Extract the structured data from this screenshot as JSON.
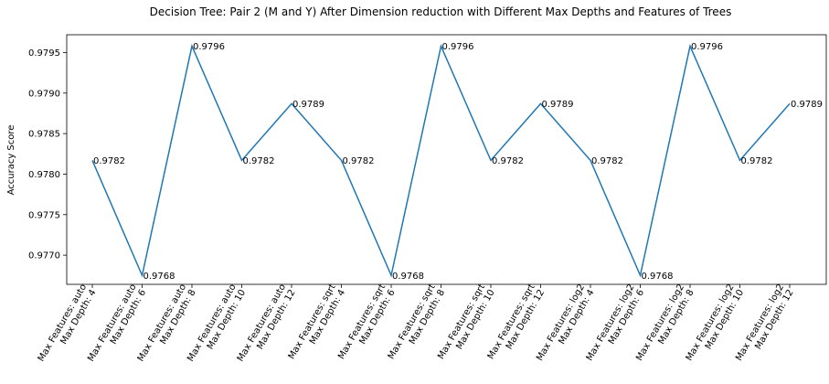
{
  "chart_data": {
    "type": "line",
    "title": "Decision Tree: Pair 2 (M and Y) After Dimension reduction with Different Max Depths and Features of Trees",
    "xlabel": "",
    "ylabel": "Accuracy Score",
    "categories": [
      [
        "Max Features: auto",
        "Max Depth: 4"
      ],
      [
        "Max Features: auto",
        "Max Depth: 6"
      ],
      [
        "Max Features: auto",
        "Max Depth: 8"
      ],
      [
        "Max Features: auto",
        "Max Depth: 10"
      ],
      [
        "Max Features: auto",
        "Max Depth: 12"
      ],
      [
        "Max Features: sqrt",
        "Max Depth: 4"
      ],
      [
        "Max Features: sqrt",
        "Max Depth: 6"
      ],
      [
        "Max Features: sqrt",
        "Max Depth: 8"
      ],
      [
        "Max Features: sqrt",
        "Max Depth: 10"
      ],
      [
        "Max Features: sqrt",
        "Max Depth: 12"
      ],
      [
        "Max Features: log2",
        "Max Depth: 4"
      ],
      [
        "Max Features: log2",
        "Max Depth: 6"
      ],
      [
        "Max Features: log2",
        "Max Depth: 8"
      ],
      [
        "Max Features: log2",
        "Max Depth: 10"
      ],
      [
        "Max Features: log2",
        "Max Depth: 12"
      ]
    ],
    "values": [
      0.97817,
      0.97675,
      0.97958,
      0.97817,
      0.97887,
      0.97817,
      0.97675,
      0.97958,
      0.97817,
      0.97887,
      0.97817,
      0.97675,
      0.97958,
      0.97817,
      0.97887
    ],
    "data_labels": [
      "0.9782",
      "0.9768",
      "0.9796",
      "0.9782",
      "0.9789",
      "0.9782",
      "0.9768",
      "0.9796",
      "0.9782",
      "0.9789",
      "0.9782",
      "0.9768",
      "0.9796",
      "0.9782",
      "0.9789"
    ],
    "yticks": [
      0.977,
      0.9775,
      0.978,
      0.9785,
      0.979,
      0.9795
    ],
    "ytick_labels": [
      "0.9770",
      "0.9775",
      "0.9780",
      "0.9785",
      "0.9790",
      "0.9795"
    ],
    "ylim": [
      0.97664,
      0.97972
    ],
    "line_color": "#1f77b4",
    "grid": false,
    "legend": "none"
  }
}
